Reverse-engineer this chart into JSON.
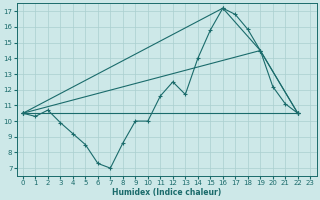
{
  "xlabel": "Humidex (Indice chaleur)",
  "bg_color": "#cde8e8",
  "line_color": "#1a6b6b",
  "grid_color": "#aacfcf",
  "xlim": [
    -0.5,
    23.5
  ],
  "ylim": [
    6.5,
    17.5
  ],
  "xticks": [
    0,
    1,
    2,
    3,
    4,
    5,
    6,
    7,
    8,
    9,
    10,
    11,
    12,
    13,
    14,
    15,
    16,
    17,
    18,
    19,
    20,
    21,
    22,
    23
  ],
  "yticks": [
    7,
    8,
    9,
    10,
    11,
    12,
    13,
    14,
    15,
    16,
    17
  ],
  "series": [
    {
      "x": [
        0,
        1,
        2,
        3,
        4,
        5,
        6,
        7,
        8,
        9,
        10,
        11,
        12,
        13,
        14,
        15,
        16,
        17,
        18,
        19,
        20,
        21,
        22
      ],
      "y": [
        10.5,
        10.3,
        10.7,
        9.9,
        9.2,
        8.5,
        7.3,
        7.0,
        8.6,
        10.0,
        10.0,
        11.6,
        12.5,
        11.7,
        14.0,
        15.8,
        17.2,
        16.8,
        15.85,
        14.5,
        12.2,
        11.1,
        10.5
      ]
    },
    {
      "comment": "upper triangle: 0->16->19->22",
      "x": [
        0,
        16,
        19,
        22
      ],
      "y": [
        10.5,
        17.2,
        14.5,
        10.5
      ]
    },
    {
      "comment": "middle triangle: 0->19->22",
      "x": [
        0,
        19,
        22
      ],
      "y": [
        10.5,
        14.5,
        10.5
      ]
    },
    {
      "x": [
        0,
        22
      ],
      "y": [
        10.5,
        10.5
      ]
    }
  ]
}
